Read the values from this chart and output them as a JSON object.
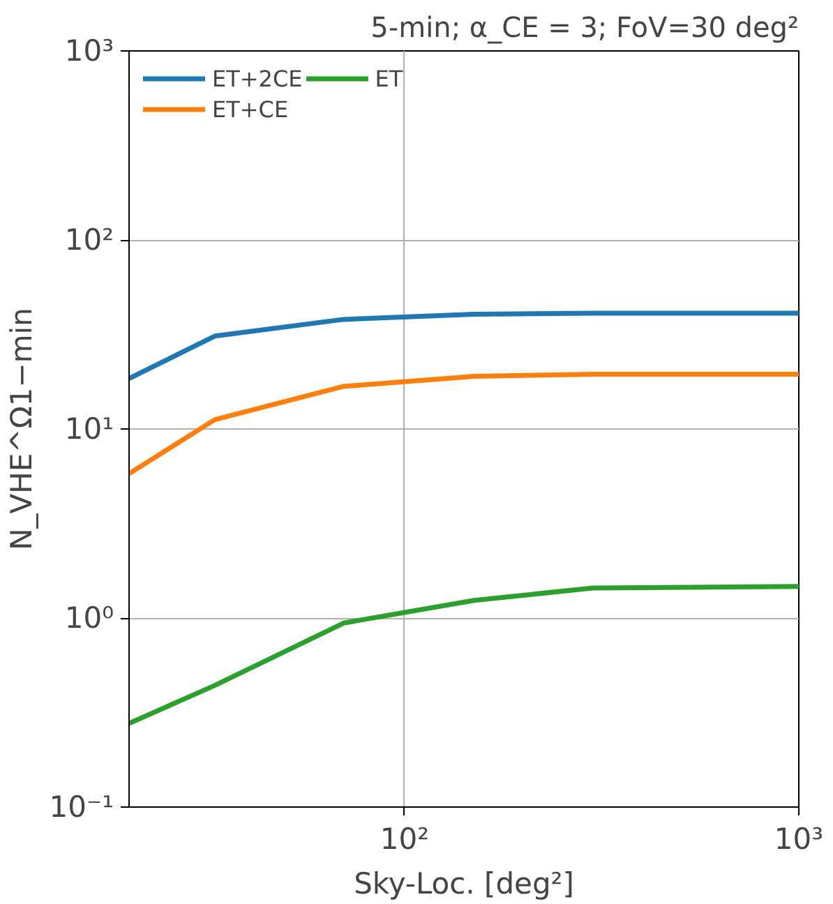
{
  "chart_data": {
    "type": "line",
    "title": "5-min; α_CE = 3; FoV=30 deg²",
    "xlabel": "Sky-Loc. [deg²]",
    "ylabel": "N_VHE^Ω1−min",
    "x": [
      20,
      33,
      70,
      150,
      300,
      1000
    ],
    "series": [
      {
        "name": "ET+2CE",
        "color": "#1f77b4",
        "values": [
          18.5,
          31,
          38,
          40.5,
          41,
          41
        ]
      },
      {
        "name": "ET+CE",
        "color": "#ff7f0e",
        "values": [
          5.8,
          11.2,
          16.8,
          19,
          19.5,
          19.5
        ]
      },
      {
        "name": "ET",
        "color": "#2ca02c",
        "values": [
          0.277,
          0.44,
          0.94,
          1.24,
          1.44,
          1.47
        ]
      }
    ],
    "log": "xy",
    "xlim": [
      20,
      1000
    ],
    "ylim": [
      0.1,
      1000
    ],
    "xticks": [
      {
        "value": 100,
        "label": "10²"
      },
      {
        "value": 1000,
        "label": "10³"
      }
    ],
    "yticks": [
      {
        "value": 0.1,
        "label": "10⁻¹"
      },
      {
        "value": 1,
        "label": "10⁰"
      },
      {
        "value": 10,
        "label": "10¹"
      },
      {
        "value": 100,
        "label": "10²"
      },
      {
        "value": 1000,
        "label": "10³"
      }
    ],
    "grid": true,
    "legend": "top left",
    "line_style": "solid"
  }
}
